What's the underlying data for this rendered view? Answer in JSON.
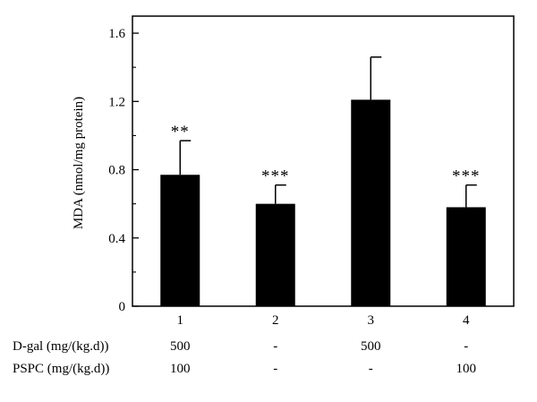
{
  "chart_data": {
    "type": "bar",
    "categories": [
      "1",
      "2",
      "3",
      "4"
    ],
    "values": [
      0.77,
      0.6,
      1.21,
      0.58
    ],
    "errors": [
      0.2,
      0.11,
      0.25,
      0.13
    ],
    "significance": [
      "**",
      "***",
      "",
      "***"
    ],
    "ylabel": "MDA (nmol/mg protein)",
    "xlabel": "",
    "ylim": [
      0,
      1.7
    ],
    "yticks": [
      0,
      0.4,
      0.8,
      1.2,
      1.6
    ],
    "ytick_labels": [
      "0",
      "0.4",
      "0.8",
      "1.2",
      "1.6"
    ],
    "bar_color": "#000000",
    "grid": false,
    "treatment_table": [
      {
        "label": "D-gal (mg/(kg.d))",
        "values": [
          "500",
          "-",
          "500",
          "-"
        ]
      },
      {
        "label": "PSPC (mg/(kg.d))",
        "values": [
          "100",
          "-",
          "-",
          "100"
        ]
      }
    ]
  }
}
